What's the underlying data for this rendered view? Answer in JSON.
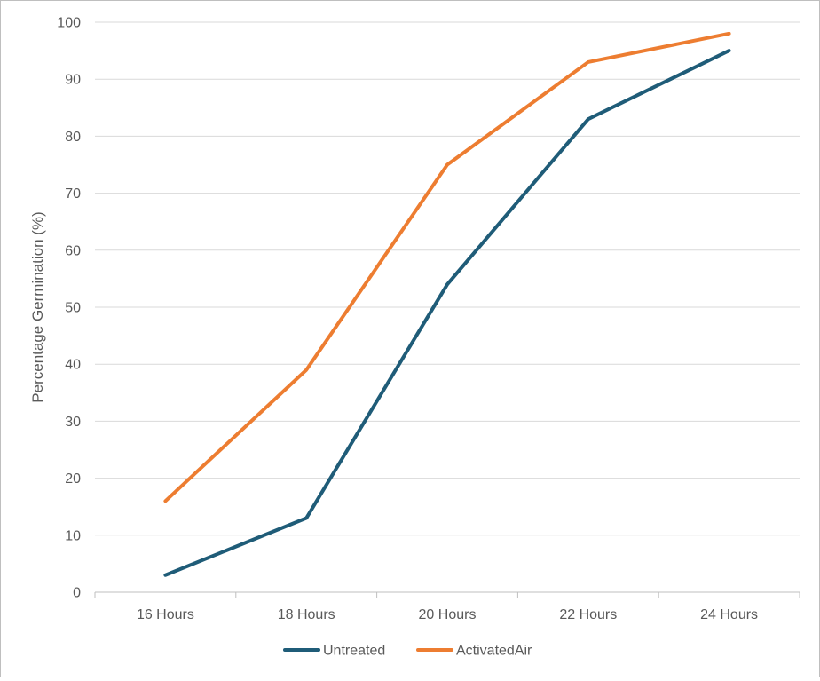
{
  "chart_data": {
    "type": "line",
    "categories": [
      "16 Hours",
      "18 Hours",
      "20 Hours",
      "22 Hours",
      "24 Hours"
    ],
    "series": [
      {
        "name": "Untreated",
        "values": [
          3,
          13,
          54,
          83,
          95
        ],
        "color": "#1f5c78"
      },
      {
        "name": "ActivatedAir",
        "values": [
          16,
          39,
          75,
          93,
          98
        ],
        "color": "#ed7d31"
      }
    ],
    "title": "",
    "xlabel": "",
    "ylabel": "Percentage Germination (%)",
    "ylim": [
      0,
      100
    ],
    "yticks": [
      "0",
      "10",
      "20",
      "30",
      "40",
      "50",
      "60",
      "70",
      "80",
      "90",
      "100"
    ],
    "grid": true,
    "legend_position": "bottom"
  }
}
